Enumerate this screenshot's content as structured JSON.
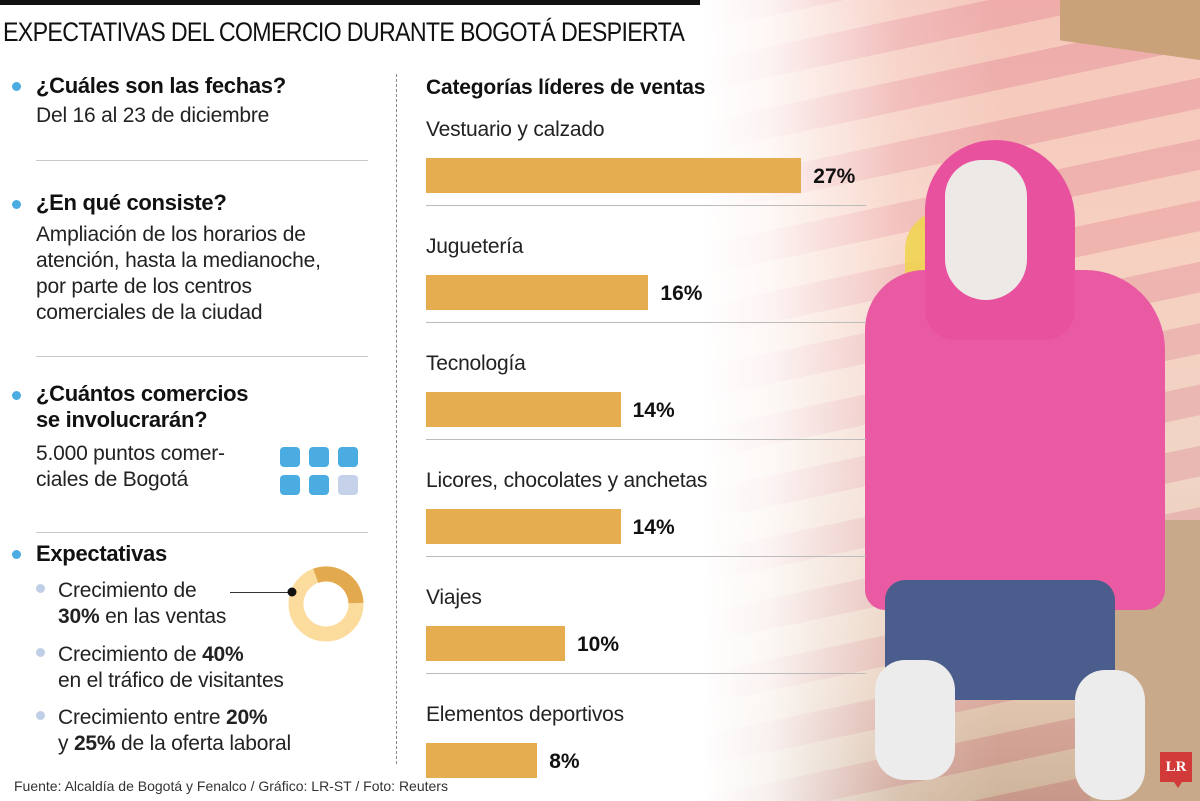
{
  "header": {
    "title": "EXPECTATIVAS DEL COMERCIO DURANTE BOGOTÁ DESPIERTA"
  },
  "left": {
    "sections": [
      {
        "heading": "¿Cuáles son las fechas?",
        "body": "Del 16 al 23 de diciembre"
      },
      {
        "heading": "¿En qué consiste?",
        "body_lines": [
          "Ampliación de los horarios de",
          "atención, hasta la medianoche,",
          "por parte de los  centros",
          "comerciales de la ciudad"
        ]
      },
      {
        "heading_lines": [
          "¿Cuántos comercios",
          "se involucrarán?"
        ],
        "body_lines": [
          "5.000 puntos comer-",
          "ciales de Bogotá"
        ],
        "icon_grid": {
          "filled": 5,
          "empty": 1
        }
      },
      {
        "heading": "Expectativas",
        "items": [
          {
            "line1": "Crecimiento de",
            "line2_bold": "30%",
            "line2_rest": " en las ventas"
          },
          {
            "line1_text": "Crecimiento de ",
            "line1_bold": "40%",
            "line2": "en el tráfico de visitantes"
          },
          {
            "line1_text": "Crecimiento entre ",
            "line1_bold": "20%",
            "line2_pre": "y ",
            "line2_bold": "25%",
            "line2_rest": " de la oferta laboral"
          }
        ],
        "donut": {
          "value": 30,
          "highlight_color": "#e3a94e",
          "rest_color": "#fbdc9c"
        }
      }
    ]
  },
  "chart_data": {
    "type": "bar",
    "orientation": "horizontal",
    "title": "Categorías líderes de ventas",
    "categories": [
      "Vestuario y calzado",
      "Juguetería",
      "Tecnología",
      "Licores, chocolates y anchetas",
      "Viajes",
      "Elementos deportivos"
    ],
    "values": [
      27,
      16,
      14,
      14,
      10,
      8
    ],
    "labels": [
      "27%",
      "16%",
      "14%",
      "14%",
      "10%",
      "8%"
    ],
    "unit": "%",
    "bar_color": "#e5ad50",
    "xlabel": "",
    "ylabel": "",
    "grid": false,
    "legend": null
  },
  "footer": {
    "source": "Fuente: Alcaldía de Bogotá y Fenalco / Gráfico: LR-ST / Foto: Reuters",
    "logo": "LR"
  },
  "colors": {
    "accent_blue": "#4aace0",
    "bar": "#e5ad50",
    "logo_red": "#d23a3a"
  }
}
